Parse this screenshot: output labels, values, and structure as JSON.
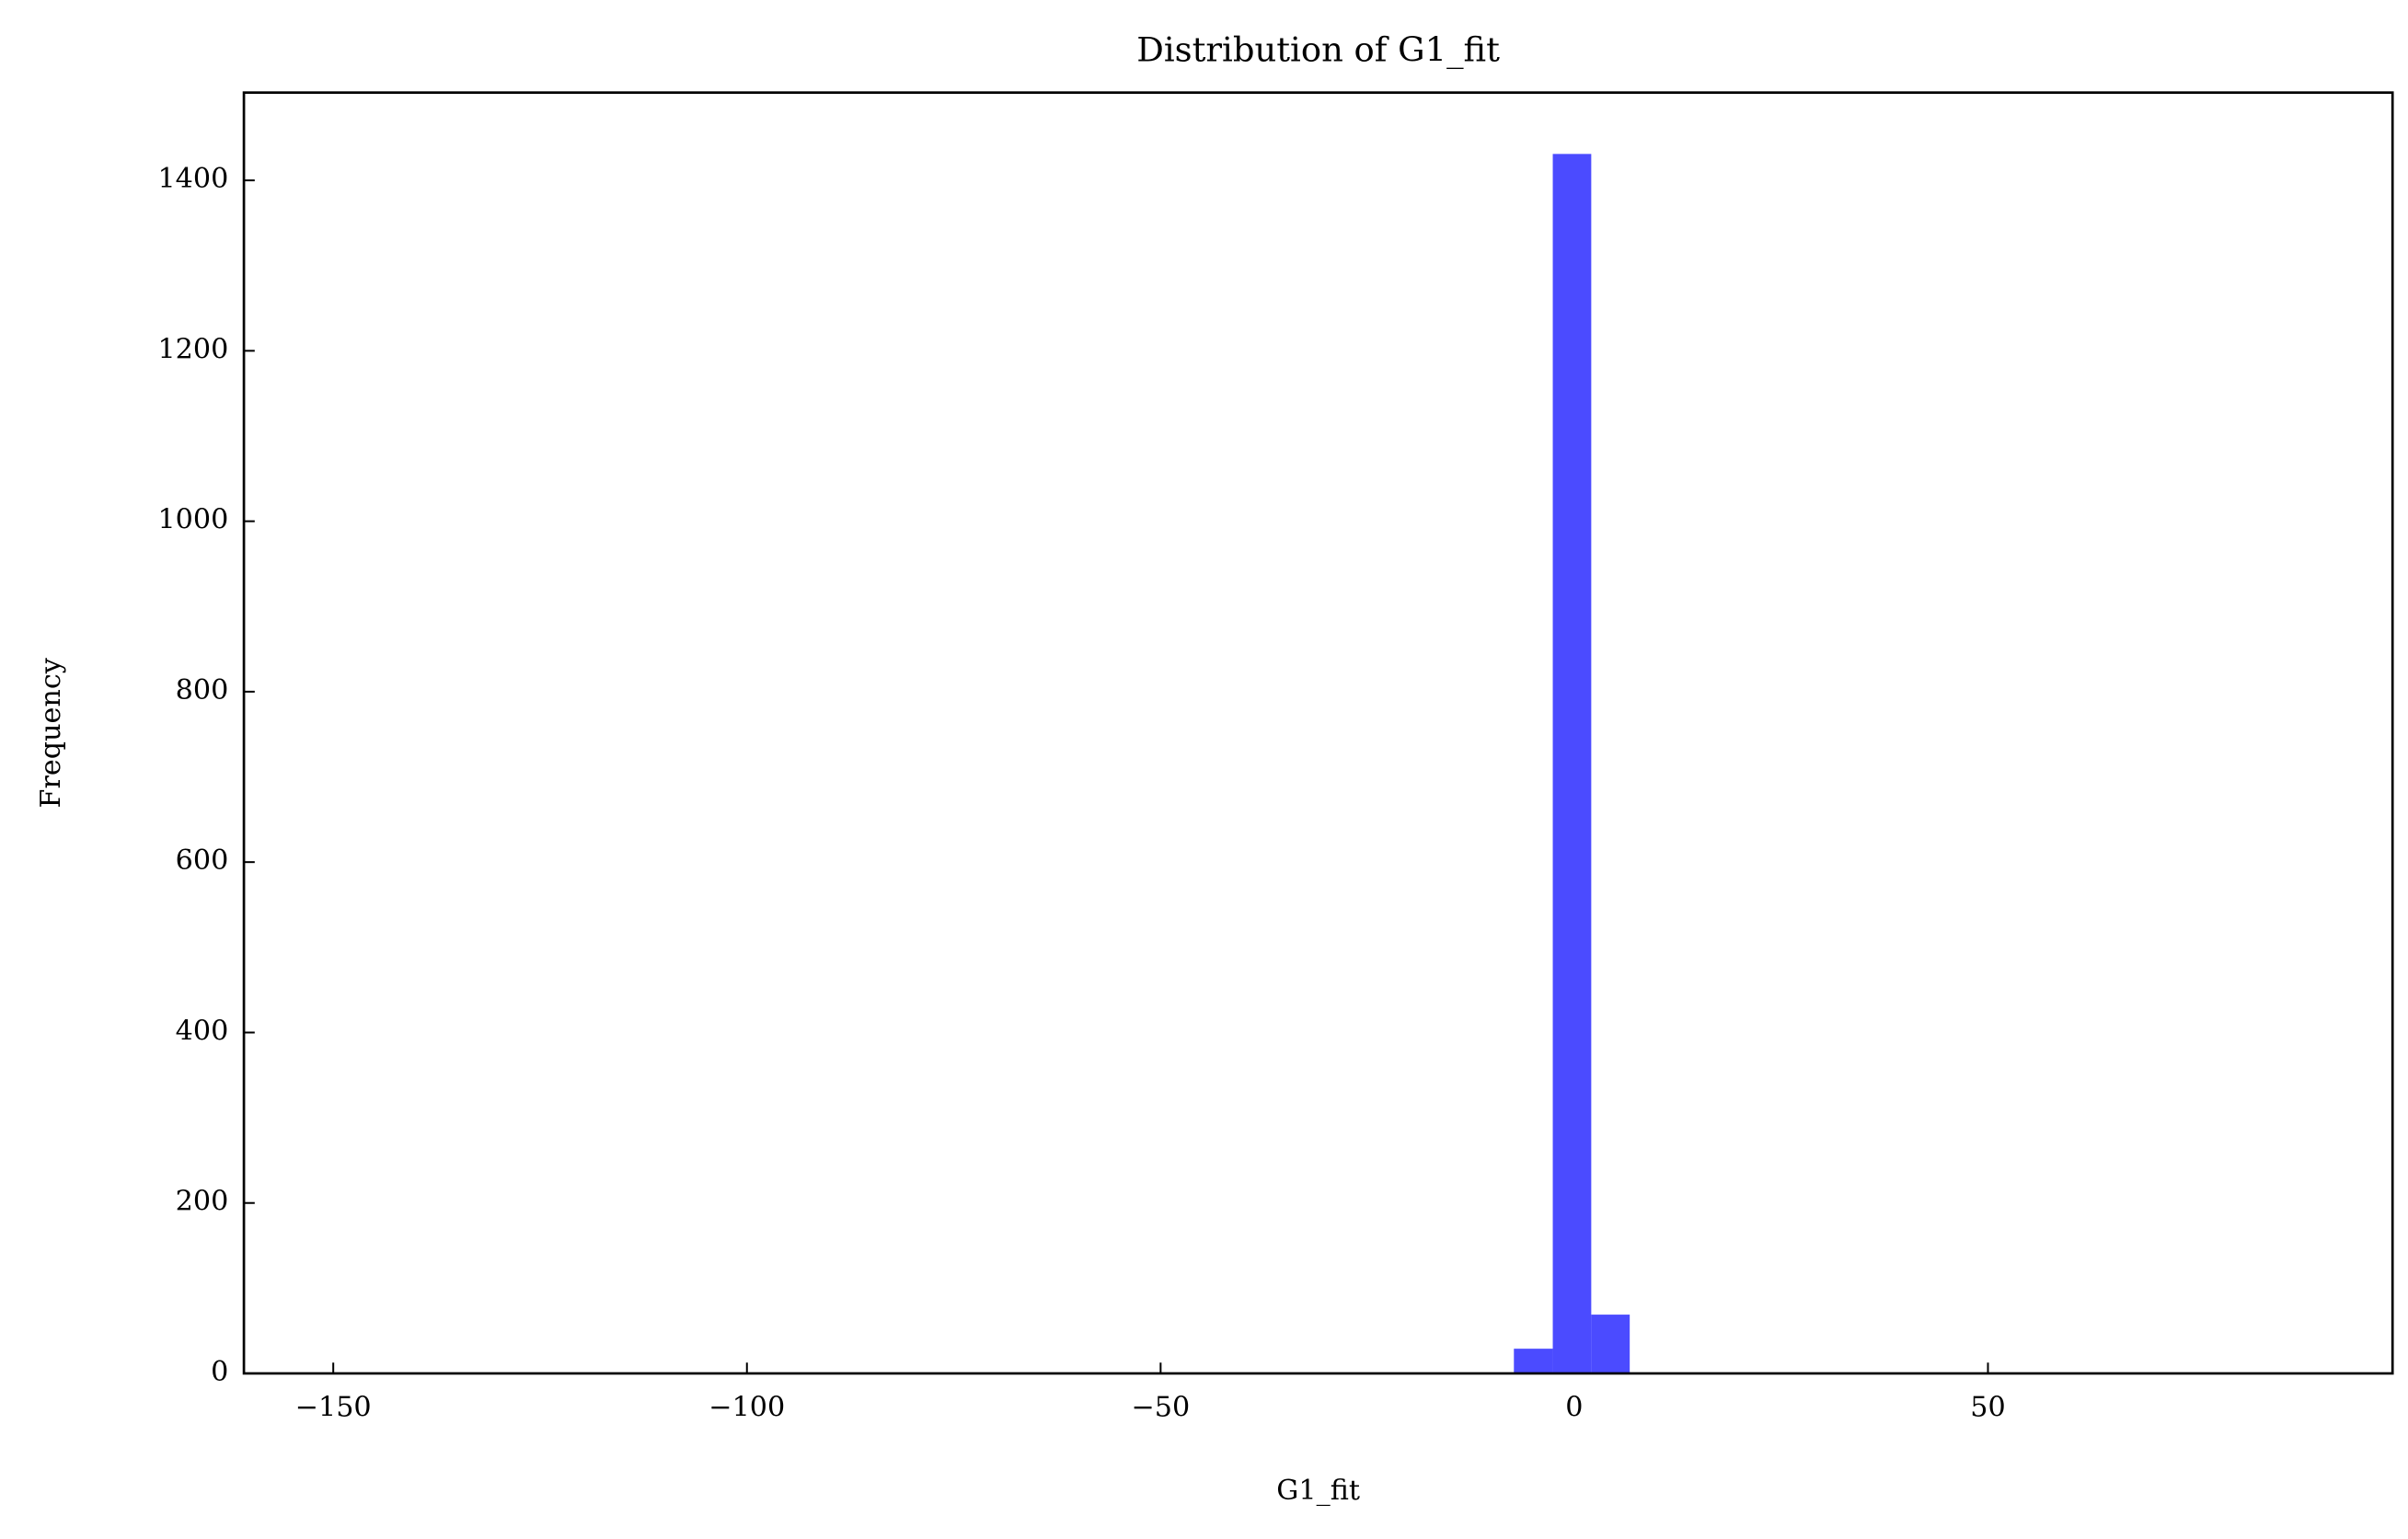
{
  "chart_data": {
    "type": "histogram",
    "title": "Distribution of G1_fit",
    "x_label": "G1_fit",
    "y_label": "Frequency",
    "bins": [
      -7.3,
      -2.6,
      2.05,
      6.7
    ],
    "values": [
      29,
      1431,
      69
    ],
    "color": "#4b4bff",
    "xlim": [
      -160.8,
      98.9
    ],
    "ylim": [
      0,
      1503
    ],
    "xticks": [
      {
        "value": -150,
        "label": "−150"
      },
      {
        "value": -100,
        "label": "−100"
      },
      {
        "value": -50,
        "label": "−50"
      },
      0,
      50
    ],
    "yticks": [
      0,
      200,
      400,
      600,
      800,
      1000,
      1200,
      1400
    ],
    "grid": false
  }
}
